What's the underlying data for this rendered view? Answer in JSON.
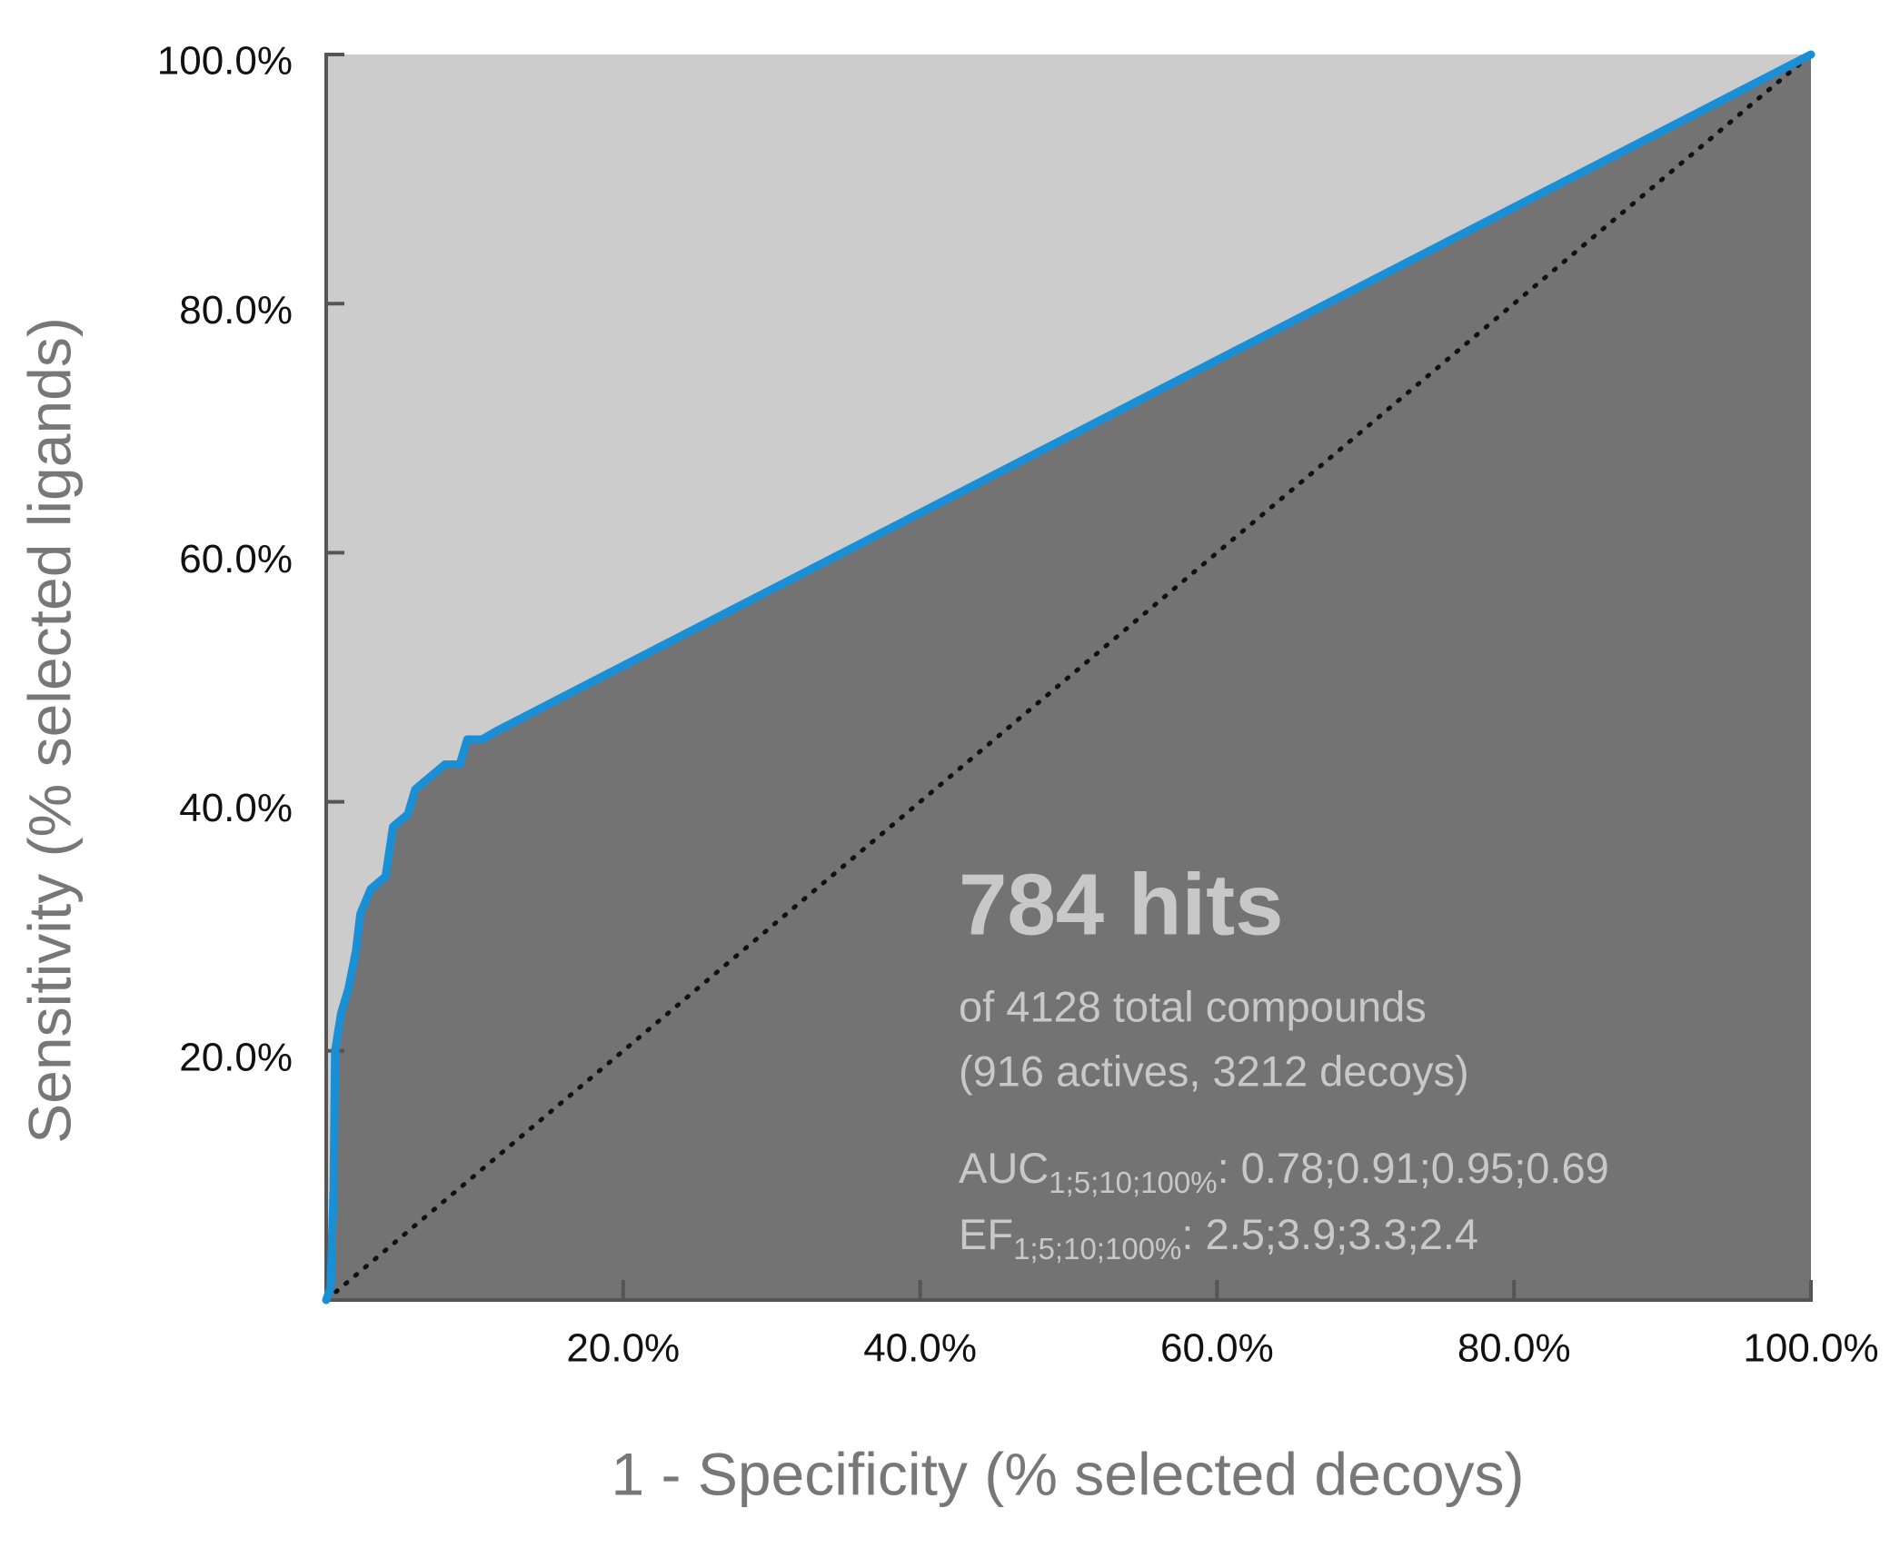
{
  "chart_data": {
    "type": "line",
    "x_label": "1 - Specificity (% selected decoys)",
    "y_label": "Sensitivity (% selected ligands)",
    "x": [
      0,
      0.3,
      0.5,
      0.6,
      1,
      1.5,
      2,
      2.3,
      3,
      4,
      4.5,
      5.5,
      6,
      7,
      8,
      9,
      9.5,
      10.5,
      11.5,
      100
    ],
    "values": [
      0,
      1,
      9,
      20,
      23,
      25,
      28,
      31,
      33,
      34,
      38,
      39,
      41,
      42,
      43,
      43,
      45,
      45,
      45.7,
      100
    ],
    "color": "#1a8fd6",
    "area_color": "#737373",
    "background_color": "#cccccc",
    "xlim": [
      0,
      100
    ],
    "ylim": [
      0,
      100
    ],
    "xticks": [
      {
        "value": 20,
        "label": "20.0%"
      },
      {
        "value": 40,
        "label": "40.0%"
      },
      {
        "value": 60,
        "label": "60.0%"
      },
      {
        "value": 80,
        "label": "80.0%"
      },
      {
        "value": 100,
        "label": "100.0%"
      }
    ],
    "yticks": [
      {
        "value": 20,
        "label": "20.0%"
      },
      {
        "value": 40,
        "label": "40.0%"
      },
      {
        "value": 60,
        "label": "60.0%"
      },
      {
        "value": 80,
        "label": "80.0%"
      },
      {
        "value": 100,
        "label": "100.0%"
      }
    ],
    "annotations": {
      "hits": "784 hits",
      "total": "of 4128 total compounds",
      "breakdown": "(916 actives, 3212 decoys)",
      "auc": {
        "label": "AUC",
        "sub": "1;5;10;100%",
        "text": ": 0.78;0.91;0.95;0.69"
      },
      "ef": {
        "label": "EF",
        "sub": "1;5;10;100%",
        "text": ": 2.5;3.9;3.3;2.4"
      }
    }
  }
}
